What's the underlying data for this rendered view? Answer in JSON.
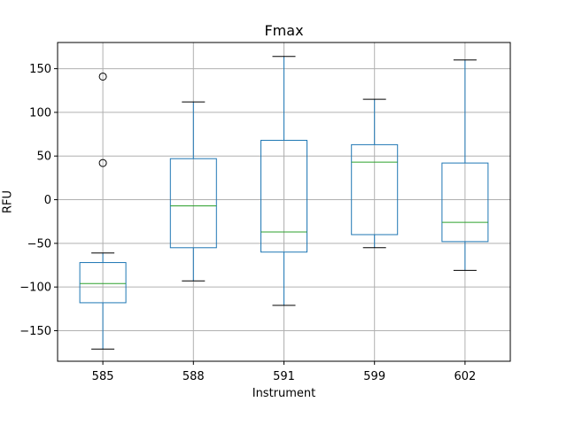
{
  "chart_data": {
    "type": "box",
    "title": "Fmax",
    "xlabel": "Instrument",
    "ylabel": "RFU",
    "ylim": [
      -185,
      180
    ],
    "yticks": [
      -150,
      -100,
      -50,
      0,
      50,
      100,
      150
    ],
    "grid": true,
    "categories": [
      "585",
      "588",
      "591",
      "599",
      "602"
    ],
    "boxes": [
      {
        "category": "585",
        "whisker_low": -171,
        "q1": -118,
        "median": -96,
        "q3": -72,
        "whisker_high": -61,
        "outliers": [
          42,
          141
        ]
      },
      {
        "category": "588",
        "whisker_low": -93,
        "q1": -55,
        "median": -7,
        "q3": 47,
        "whisker_high": 112,
        "outliers": []
      },
      {
        "category": "591",
        "whisker_low": -121,
        "q1": -60,
        "median": -37,
        "q3": 68,
        "whisker_high": 164,
        "outliers": []
      },
      {
        "category": "599",
        "whisker_low": -55,
        "q1": -40,
        "median": 43,
        "q3": 63,
        "whisker_high": 115,
        "outliers": []
      },
      {
        "category": "602",
        "whisker_low": -81,
        "q1": -48,
        "median": -26,
        "q3": 42,
        "whisker_high": 160,
        "outliers": []
      }
    ],
    "colors": {
      "box": "#1f77b4",
      "median": "#2ca02c",
      "whisker_cap": "#000000",
      "grid": "#b0b0b0"
    }
  }
}
